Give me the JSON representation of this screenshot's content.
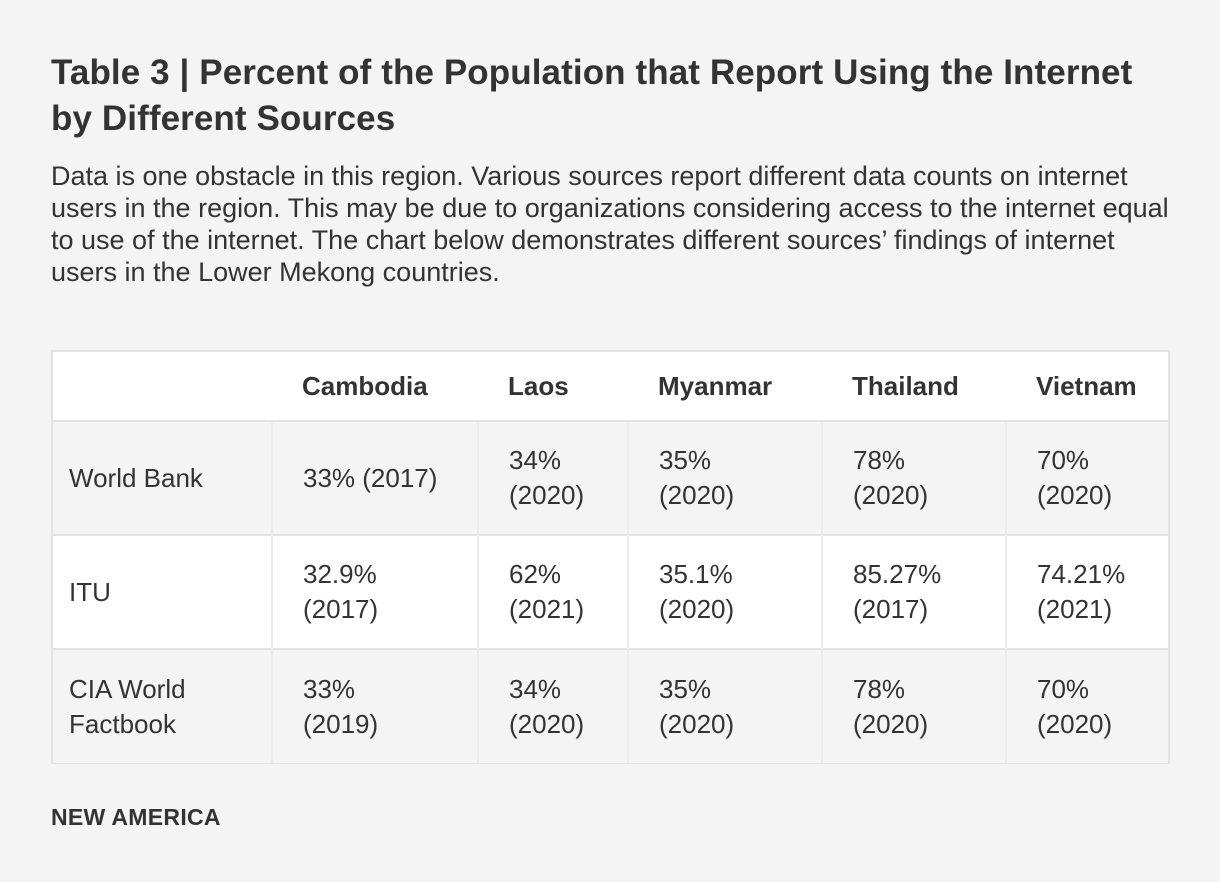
{
  "title": "Table 3 | Percent of the Population that Report Using the Internet by Different Sources",
  "description": "Data is one obstacle in this region. Various sources report different data counts on internet users in the region. This may be due to organizations considering access to the internet equal to use of the internet. The chart below demonstrates different sources’ findings of internet users in the Lower Mekong countries.",
  "footer": "NEW AMERICA",
  "chart_data": {
    "type": "table",
    "title": "Table 3 | Percent of the Population that Report Using the Internet by Different Sources",
    "columns": [
      "",
      "Cambodia",
      "Laos",
      "Myanmar",
      "Thailand",
      "Vietnam"
    ],
    "rows": [
      {
        "source": "World Bank",
        "cells": [
          "33% (2017)",
          "34% (2020)",
          "35% (2020)",
          "78% (2020)",
          "70% (2020)"
        ]
      },
      {
        "source": "ITU",
        "cells": [
          "32.9% (2017)",
          "62% (2021)",
          "35.1% (2020)",
          "85.27% (2017)",
          "74.21% (2021)"
        ]
      },
      {
        "source": "CIA World Factbook",
        "cells": [
          "33% (2019)",
          "34% (2020)",
          "35% (2020)",
          "78% (2020)",
          "70% (2020)"
        ]
      }
    ]
  },
  "colors": {
    "background": "#f4f4f4",
    "text": "#333333",
    "border": "#e3e3e3",
    "row_shade": "#f4f4f4",
    "row_plain": "#ffffff"
  }
}
